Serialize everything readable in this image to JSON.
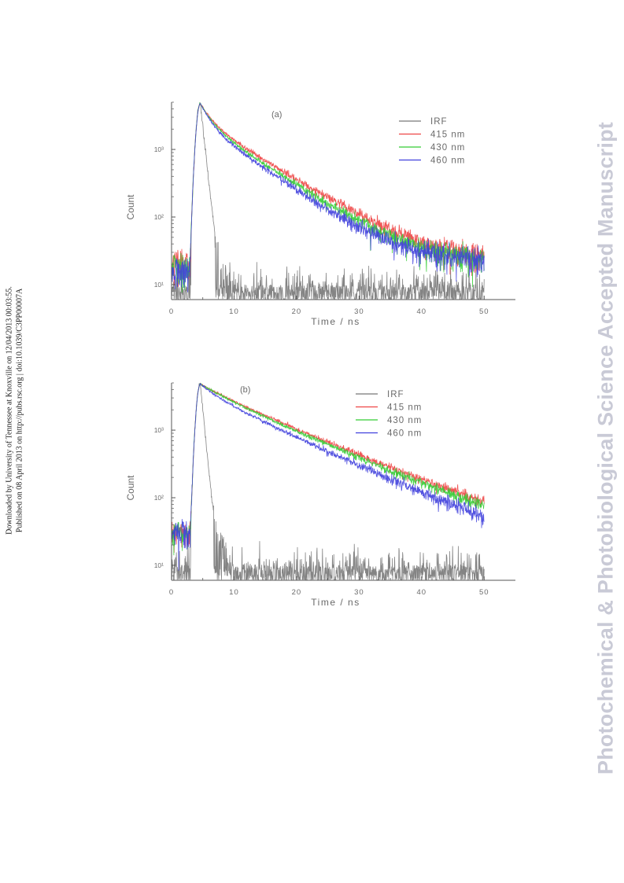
{
  "side_note": {
    "line1": "Downloaded by University of Tennessee at Knoxville on 12/04/2013 00:03:55.",
    "line2": "Published on 08 April 2013 on http://pubs.rsc.org | doi:10.1039/C3PP00007A"
  },
  "watermark": "Photochemical & Photobiological Science Accepted Manuscript",
  "chart_data": [
    {
      "type": "line",
      "panel_label": "(a)",
      "xlabel": "Time / ns",
      "ylabel": "Count",
      "xlim": [
        0,
        55
      ],
      "ylim": [
        6,
        5000
      ],
      "yscale": "log",
      "x_ticks": [
        0,
        10,
        20,
        30,
        40,
        50
      ],
      "y_ticks": [
        {
          "value": 10,
          "label": "10¹"
        },
        {
          "value": 100,
          "label": "10²"
        },
        {
          "value": 1000,
          "label": "10³"
        }
      ],
      "grid": false,
      "legend_position": "top-right",
      "series": [
        {
          "name": "IRF",
          "color": "#777777",
          "kind": "irf",
          "peak_time": 4.6,
          "peak": 4800,
          "rise_width": 0.7,
          "fall_tau": 0.5,
          "shoulder": 28,
          "shoulder_tau": 1.5,
          "floor": 8
        },
        {
          "name": "415 nm",
          "color": "#ee4444",
          "kind": "decay",
          "peak_time": 4.6,
          "peak": 4800,
          "rise_width": 0.7,
          "tau1": 1.6,
          "a1": 0.45,
          "tau2": 7.5,
          "a2": 0.55,
          "floor": 20,
          "pre_floor": 20
        },
        {
          "name": "430 nm",
          "color": "#33cc33",
          "kind": "decay",
          "peak_time": 4.6,
          "peak": 4800,
          "rise_width": 0.7,
          "tau1": 1.5,
          "a1": 0.47,
          "tau2": 7.0,
          "a2": 0.53,
          "floor": 20,
          "pre_floor": 18
        },
        {
          "name": "460 nm",
          "color": "#4040dd",
          "kind": "decay",
          "peak_time": 4.6,
          "peak": 4800,
          "rise_width": 0.7,
          "tau1": 1.4,
          "a1": 0.5,
          "tau2": 6.6,
          "a2": 0.5,
          "floor": 20,
          "pre_floor": 16
        }
      ]
    },
    {
      "type": "line",
      "panel_label": "(b)",
      "xlabel": "Time / ns",
      "ylabel": "Count",
      "xlim": [
        0,
        55
      ],
      "ylim": [
        6,
        5000
      ],
      "yscale": "log",
      "x_ticks": [
        0,
        10,
        20,
        30,
        40,
        50
      ],
      "y_ticks": [
        {
          "value": 10,
          "label": "10¹"
        },
        {
          "value": 100,
          "label": "10²"
        },
        {
          "value": 1000,
          "label": "10³"
        }
      ],
      "grid": false,
      "legend_position": "top-right",
      "series": [
        {
          "name": "IRF",
          "color": "#777777",
          "kind": "irf",
          "peak_time": 4.6,
          "peak": 4800,
          "rise_width": 0.7,
          "fall_tau": 0.45,
          "shoulder": 32,
          "shoulder_tau": 1.6,
          "floor": 8
        },
        {
          "name": "415 nm",
          "color": "#ee4444",
          "kind": "decay",
          "peak_time": 4.6,
          "peak": 4800,
          "rise_width": 0.7,
          "tau1": 3.5,
          "a1": 0.15,
          "tau2": 11.0,
          "a2": 0.85,
          "floor": 22,
          "pre_floor": 30
        },
        {
          "name": "430 nm",
          "color": "#33cc33",
          "kind": "decay",
          "peak_time": 4.6,
          "peak": 4800,
          "rise_width": 0.7,
          "tau1": 3.4,
          "a1": 0.17,
          "tau2": 10.7,
          "a2": 0.83,
          "floor": 20,
          "pre_floor": 30
        },
        {
          "name": "460 nm",
          "color": "#4040dd",
          "kind": "decay",
          "peak_time": 4.6,
          "peak": 4800,
          "rise_width": 0.7,
          "tau1": 2.5,
          "a1": 0.25,
          "tau2": 10.0,
          "a2": 0.75,
          "floor": 16,
          "pre_floor": 30
        }
      ]
    }
  ]
}
